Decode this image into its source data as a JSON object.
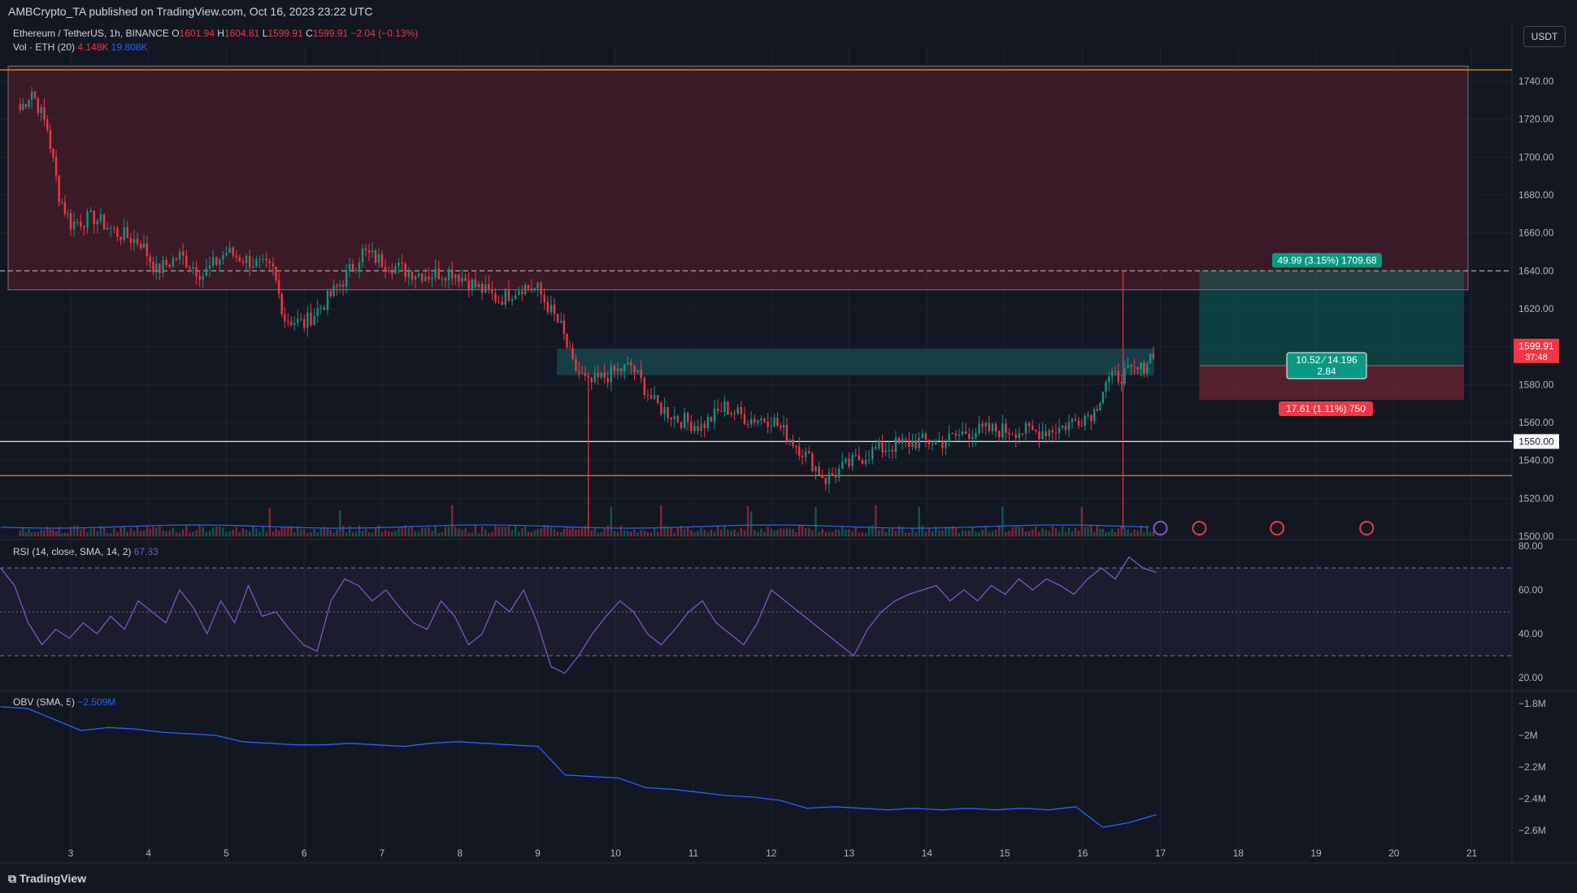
{
  "header": {
    "publisher": "AMBCrypto_TA published on TradingView.com, Oct 16, 2023 23:22 UTC",
    "symbol": "Ethereum / TetherUS, 1h, BINANCE",
    "open_label": "O",
    "open": "1601.94",
    "high_label": "H",
    "high": "1604.81",
    "low_label": "L",
    "low": "1599.91",
    "close_label": "C",
    "close": "1599.91",
    "change": "−2.04 (−0.13%)",
    "currency_button": "USDT"
  },
  "volume_legend": {
    "label": "Vol · ETH (20)",
    "value1": "4.148K",
    "value2": "19.808K"
  },
  "rsi_legend": {
    "label": "RSI (14, close, SMA, 14, 2)",
    "value": "67.83"
  },
  "obv_legend": {
    "label": "OBV (SMA, 5)",
    "value": "−2.509M"
  },
  "footer": {
    "brand": "TradingView"
  },
  "colors": {
    "background": "#131722",
    "up": "#089981",
    "down": "#f23645",
    "rsi": "#7e57c2",
    "obv": "#2962ff",
    "zone_red": "#5a1e2a",
    "zone_teal": "#1a4e55",
    "orange": "#f7931a"
  },
  "position_tool": {
    "target_label": "49.99 (3.15%) 1709.68",
    "middle_label_line1": "10.52 ⁄ 14.196",
    "middle_label_line2": "2.84",
    "stop_label": "17.61 (1.11%) 750"
  },
  "price_badges": {
    "last_price": "1599.91",
    "countdown": "37:48",
    "level": "1550.00"
  },
  "chart_data": {
    "type": "candlestick",
    "price_axis": {
      "ylim": [
        1500,
        1750
      ],
      "ticks": [
        1740,
        1720,
        1700,
        1680,
        1660,
        1640,
        1620,
        1600,
        1580,
        1560,
        1540,
        1520,
        1500
      ],
      "tick_labels": [
        "1740.00",
        "1720.00",
        "1700.00",
        "1680.00",
        "1660.00",
        "1640.00",
        "1620.00",
        "1600.00",
        "1580.00",
        "1560.00",
        "1540.00",
        "1520.00",
        "1500.00"
      ]
    },
    "x_axis": {
      "ticks": [
        "3",
        "4",
        "5",
        "6",
        "7",
        "8",
        "9",
        "10",
        "11",
        "12",
        "13",
        "14",
        "15",
        "16",
        "17",
        "18",
        "19",
        "20",
        "21"
      ]
    },
    "close_series": [
      {
        "day": 2.35,
        "close": 1725
      },
      {
        "day": 2.5,
        "close": 1735
      },
      {
        "day": 2.7,
        "close": 1715
      },
      {
        "day": 2.85,
        "close": 1680
      },
      {
        "day": 3.0,
        "close": 1665
      },
      {
        "day": 3.3,
        "close": 1668
      },
      {
        "day": 3.6,
        "close": 1660
      },
      {
        "day": 3.9,
        "close": 1655
      },
      {
        "day": 4.1,
        "close": 1640
      },
      {
        "day": 4.4,
        "close": 1648
      },
      {
        "day": 4.7,
        "close": 1638
      },
      {
        "day": 5.0,
        "close": 1650
      },
      {
        "day": 5.3,
        "close": 1645
      },
      {
        "day": 5.6,
        "close": 1640
      },
      {
        "day": 5.75,
        "close": 1615
      },
      {
        "day": 6.0,
        "close": 1612
      },
      {
        "day": 6.3,
        "close": 1625
      },
      {
        "day": 6.5,
        "close": 1635
      },
      {
        "day": 6.75,
        "close": 1650
      },
      {
        "day": 7.0,
        "close": 1645
      },
      {
        "day": 7.3,
        "close": 1640
      },
      {
        "day": 7.6,
        "close": 1638
      },
      {
        "day": 7.9,
        "close": 1640
      },
      {
        "day": 8.2,
        "close": 1632
      },
      {
        "day": 8.5,
        "close": 1625
      },
      {
        "day": 8.8,
        "close": 1632
      },
      {
        "day": 9.0,
        "close": 1630
      },
      {
        "day": 9.3,
        "close": 1610
      },
      {
        "day": 9.45,
        "close": 1590
      },
      {
        "day": 9.65,
        "close": 1580
      },
      {
        "day": 9.9,
        "close": 1585
      },
      {
        "day": 10.2,
        "close": 1590
      },
      {
        "day": 10.5,
        "close": 1570
      },
      {
        "day": 10.8,
        "close": 1562
      },
      {
        "day": 11.1,
        "close": 1558
      },
      {
        "day": 11.4,
        "close": 1568
      },
      {
        "day": 11.7,
        "close": 1562
      },
      {
        "day": 12.0,
        "close": 1562
      },
      {
        "day": 12.4,
        "close": 1545
      },
      {
        "day": 12.7,
        "close": 1530
      },
      {
        "day": 13.0,
        "close": 1538
      },
      {
        "day": 13.3,
        "close": 1545
      },
      {
        "day": 13.6,
        "close": 1548
      },
      {
        "day": 13.9,
        "close": 1550
      },
      {
        "day": 14.2,
        "close": 1550
      },
      {
        "day": 14.5,
        "close": 1555
      },
      {
        "day": 14.8,
        "close": 1556
      },
      {
        "day": 15.1,
        "close": 1556
      },
      {
        "day": 15.4,
        "close": 1555
      },
      {
        "day": 15.7,
        "close": 1557
      },
      {
        "day": 15.95,
        "close": 1562
      },
      {
        "day": 16.15,
        "close": 1566
      },
      {
        "day": 16.3,
        "close": 1582
      },
      {
        "day": 16.5,
        "close": 1585
      },
      {
        "day": 16.75,
        "close": 1588
      },
      {
        "day": 16.95,
        "close": 1600
      }
    ],
    "horizontal_levels": [
      {
        "price": 1746,
        "style": "solid",
        "color": "#f7931a"
      },
      {
        "price": 1640,
        "style": "dashed",
        "color": "#b2b5be"
      },
      {
        "price": 1550,
        "style": "solid",
        "color": "#ffffff"
      },
      {
        "price": 1532,
        "style": "solid",
        "color": "#f7931a"
      }
    ],
    "zones": [
      {
        "type": "supply",
        "from_price": 1630,
        "to_price": 1748,
        "color": "red"
      },
      {
        "type": "demand",
        "from_price": 1585,
        "to_price": 1599,
        "color": "teal"
      }
    ],
    "position": {
      "entry": 1590,
      "target": 1640,
      "stop": 1572,
      "from_day": 17.5,
      "to_day": 20.9
    },
    "rsi": {
      "ylim": [
        20,
        80
      ],
      "ticks": [
        "80.00",
        "60.00",
        "40.00",
        "20.00"
      ],
      "upper_band": 70,
      "mid_band": 50,
      "lower_band": 30,
      "last": 67.83,
      "values": [
        70,
        62,
        45,
        35,
        42,
        38,
        45,
        40,
        48,
        42,
        55,
        50,
        45,
        60,
        52,
        40,
        55,
        45,
        62,
        48,
        50,
        42,
        35,
        32,
        55,
        65,
        62,
        55,
        60,
        52,
        45,
        42,
        55,
        48,
        35,
        40,
        55,
        50,
        60,
        45,
        25,
        22,
        30,
        40,
        48,
        55,
        50,
        40,
        35,
        42,
        50,
        55,
        45,
        40,
        35,
        45,
        60,
        55,
        50,
        45,
        40,
        35,
        30,
        42,
        50,
        55,
        58,
        60,
        62,
        55,
        60,
        55,
        62,
        58,
        65,
        60,
        65,
        62,
        58,
        65,
        70,
        65,
        75,
        70,
        68
      ]
    },
    "obv": {
      "ticks": [
        "−1.8M",
        "−2M",
        "−2.2M",
        "−2.4M",
        "−2.6M"
      ],
      "last": "−2.509M",
      "values": [
        -1.82,
        -1.83,
        -1.9,
        -1.97,
        -1.95,
        -1.96,
        -1.98,
        -1.99,
        -2.0,
        -2.04,
        -2.05,
        -2.06,
        -2.06,
        -2.05,
        -2.06,
        -2.07,
        -2.05,
        -2.04,
        -2.05,
        -2.06,
        -2.07,
        -2.25,
        -2.26,
        -2.27,
        -2.33,
        -2.34,
        -2.36,
        -2.38,
        -2.39,
        -2.41,
        -2.46,
        -2.45,
        -2.46,
        -2.47,
        -2.46,
        -2.47,
        -2.46,
        -2.47,
        -2.46,
        -2.47,
        -2.45,
        -2.58,
        -2.55,
        -2.5
      ]
    }
  }
}
